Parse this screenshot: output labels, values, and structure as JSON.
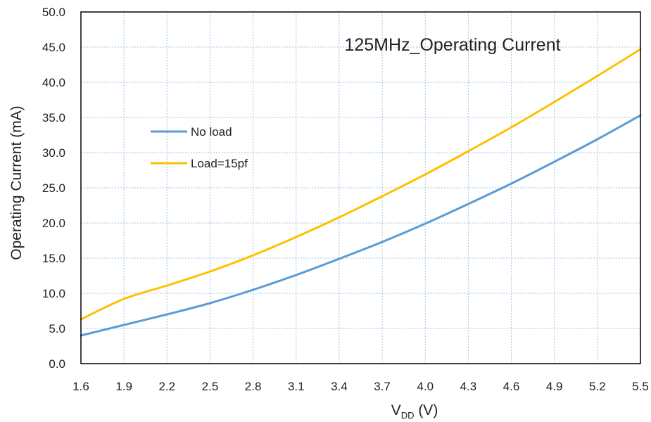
{
  "chart_data": {
    "type": "line",
    "title": "125MHz_Operating Current",
    "xlabel": "V",
    "xlabel_sub": "DD",
    "xlabel_suffix": " (V)",
    "ylabel": "Operating Current (mA)",
    "xlim": [
      1.6,
      5.5
    ],
    "ylim": [
      0,
      50
    ],
    "xticks": [
      "1.6",
      "1.9",
      "2.2",
      "2.5",
      "2.8",
      "3.1",
      "3.4",
      "3.7",
      "4.0",
      "4.3",
      "4.6",
      "4.9",
      "5.2",
      "5.5"
    ],
    "yticks": [
      "0.0",
      "5.0",
      "10.0",
      "15.0",
      "20.0",
      "25.0",
      "30.0",
      "35.0",
      "40.0",
      "45.0",
      "50.0"
    ],
    "grid": true,
    "legend_position": "middle-left",
    "x": [
      1.6,
      1.9,
      2.2,
      2.5,
      2.8,
      3.1,
      3.4,
      3.7,
      4.0,
      4.3,
      4.6,
      4.9,
      5.2,
      5.5
    ],
    "series": [
      {
        "name": "No load",
        "color": "#5B9BD5",
        "values": [
          4.0,
          5.5,
          7.0,
          8.6,
          10.5,
          12.6,
          14.9,
          17.3,
          19.9,
          22.7,
          25.6,
          28.7,
          31.9,
          35.3
        ]
      },
      {
        "name": "Load=15pf",
        "color": "#FFC000",
        "values": [
          6.3,
          9.2,
          11.1,
          13.1,
          15.4,
          18.0,
          20.8,
          23.8,
          26.9,
          30.2,
          33.6,
          37.2,
          40.9,
          44.7
        ]
      }
    ]
  }
}
